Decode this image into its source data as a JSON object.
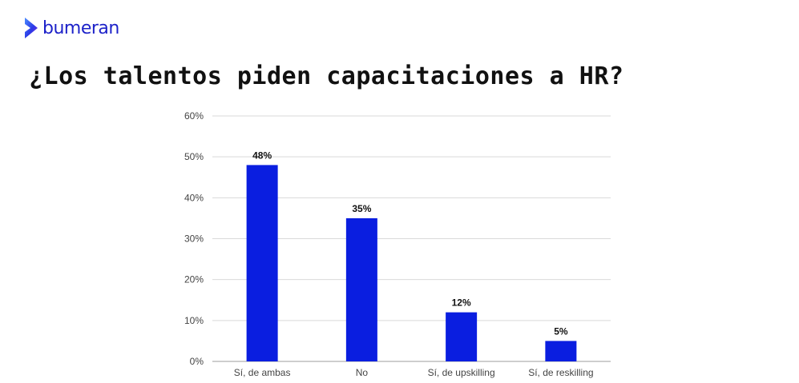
{
  "brand": {
    "name": "bumeran",
    "logo_icon": "bumeran-chevron-icon",
    "color": "#1d22c9"
  },
  "chart_data": {
    "type": "bar",
    "title": "¿Los talentos piden capacitaciones a HR?",
    "xlabel": "",
    "ylabel": "",
    "categories": [
      "Sí, de ambas",
      "No",
      "Sí, de upskilling",
      "Sí, de reskilling"
    ],
    "values": [
      48,
      35,
      12,
      5
    ],
    "data_labels": [
      "48%",
      "35%",
      "12%",
      "5%"
    ],
    "ylim": [
      0,
      60
    ],
    "yticks": [
      0,
      10,
      20,
      30,
      40,
      50,
      60
    ],
    "ytick_labels": [
      "0%",
      "10%",
      "20%",
      "30%",
      "40%",
      "50%",
      "60%"
    ],
    "grid": true,
    "bar_color": "#0a1ee0"
  }
}
